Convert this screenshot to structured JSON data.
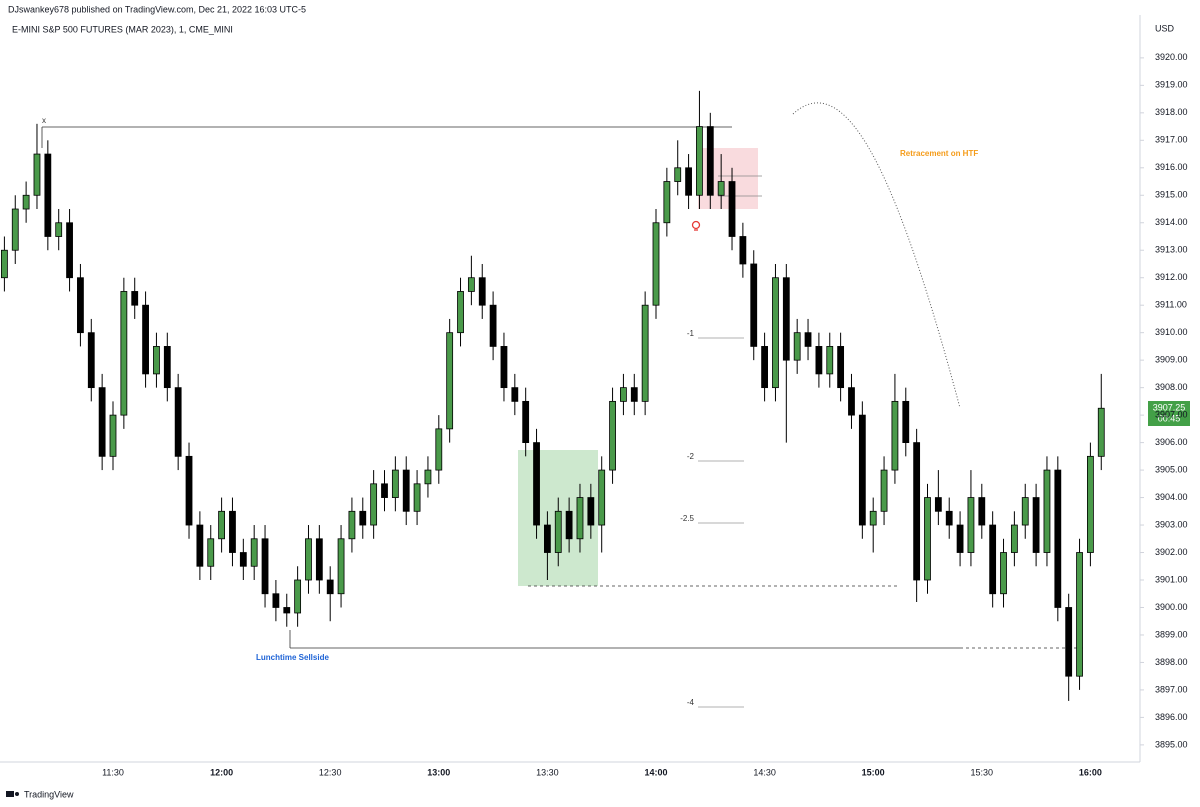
{
  "chart_data": {
    "type": "candlestick",
    "byline": "DJswankey678 published on TradingView.com, Dec 21, 2022 16:03 UTC-5",
    "title": "E-MINI S&P 500 FUTURES (MAR 2023), 1, CME_MINI",
    "currency": "USD",
    "countdown": "00:45",
    "brand": "TradingView",
    "annotations": [
      "x",
      "Retracement on HTF",
      "Lunchtime Sellside",
      "-1",
      "-2",
      "-2.5",
      "-4"
    ],
    "up_color": "#4a9a4a",
    "down_color": "#000000",
    "categories": [
      null,
      null,
      null,
      null,
      null,
      null,
      null,
      null,
      null,
      null,
      "11:30",
      null,
      null,
      null,
      null,
      null,
      null,
      null,
      null,
      null,
      "12:00",
      null,
      null,
      null,
      null,
      null,
      null,
      null,
      null,
      null,
      "12:30",
      null,
      null,
      null,
      null,
      null,
      null,
      null,
      null,
      null,
      "13:00",
      null,
      null,
      null,
      null,
      null,
      null,
      null,
      null,
      null,
      "13:30",
      null,
      null,
      null,
      null,
      null,
      null,
      null,
      null,
      null,
      "14:00",
      null,
      null,
      null,
      null,
      null,
      null,
      null,
      null,
      null,
      "14:30",
      null,
      null,
      null,
      null,
      null,
      null,
      null,
      null,
      null,
      "15:00",
      null,
      null,
      null,
      null,
      null,
      null,
      null,
      null,
      null,
      "15:30",
      null,
      null,
      null,
      null,
      null,
      null,
      null,
      null,
      null,
      "16:00",
      null
    ],
    "open": [
      3912,
      3913,
      3914.5,
      3915,
      3916.5,
      3913.5,
      3914,
      3912,
      3910,
      3908,
      3905.5,
      3907,
      3911.5,
      3911,
      3908.5,
      3909.5,
      3908,
      3905.5,
      3903,
      3901.5,
      3902.5,
      3903.5,
      3902,
      3901.5,
      3902.5,
      3900.5,
      3900,
      3899.8,
      3901,
      3902.5,
      3901,
      3900.5,
      3902.5,
      3903.5,
      3903,
      3904.5,
      3904,
      3905,
      3903.5,
      3904.5,
      3905,
      3906.5,
      3910,
      3911.5,
      3912,
      3911,
      3909.5,
      3908,
      3907.5,
      3906,
      3903,
      3902,
      3903.5,
      3902.5,
      3904,
      3903,
      3905,
      3907.5,
      3908,
      3907.5,
      3911,
      3914,
      3915.5,
      3916,
      3915,
      3917.5,
      3915,
      3915.5,
      3913.5,
      3912.5,
      3909.5,
      3908,
      3912,
      3909,
      3910,
      3909.5,
      3908.5,
      3909.5,
      3908,
      3907,
      3903,
      3903.5,
      3905,
      3907.5,
      3906,
      3901,
      3904,
      3903.5,
      3903,
      3902,
      3904,
      3903,
      3900.5,
      3902,
      3903,
      3904,
      3902,
      3905,
      3900,
      3897.5,
      3902,
      3905.5
    ],
    "high": [
      3913.5,
      3915,
      3915.5,
      3917.6,
      3917,
      3914.5,
      3914.5,
      3912.5,
      3910.5,
      3908.5,
      3907.5,
      3912,
      3912,
      3911.5,
      3910,
      3910,
      3908.5,
      3906,
      3903.5,
      3903,
      3904,
      3904,
      3902.5,
      3903,
      3903,
      3901,
      3900.5,
      3901.5,
      3903,
      3903,
      3901.5,
      3903,
      3904,
      3904,
      3905,
      3905,
      3905.5,
      3905.5,
      3905,
      3905.5,
      3907,
      3910.5,
      3912,
      3912.8,
      3912.5,
      3911.5,
      3910,
      3908.5,
      3908,
      3906.5,
      3903.5,
      3904,
      3904,
      3904.5,
      3904.5,
      3905.5,
      3908,
      3908.5,
      3908.5,
      3911.5,
      3914.5,
      3916,
      3917,
      3916.5,
      3918.8,
      3918,
      3916.5,
      3916,
      3914,
      3913,
      3910,
      3912.5,
      3912.5,
      3910.5,
      3910.5,
      3910,
      3910,
      3910,
      3908.5,
      3907.5,
      3904,
      3905.5,
      3908.5,
      3908,
      3906.5,
      3904.5,
      3905,
      3904,
      3903.5,
      3905,
      3904.5,
      3903.5,
      3902.5,
      3903.5,
      3904.5,
      3904.5,
      3905.5,
      3905.5,
      3900.5,
      3902.5,
      3906,
      3908.5
    ],
    "low": [
      3911.5,
      3912.5,
      3914,
      3914.5,
      3913,
      3913,
      3911.5,
      3909.5,
      3907.5,
      3905,
      3905,
      3906.5,
      3910.5,
      3908,
      3908,
      3907.5,
      3905,
      3902.5,
      3901,
      3901,
      3902,
      3901.5,
      3901,
      3901,
      3900,
      3899.5,
      3899.3,
      3899.3,
      3900.5,
      3900.5,
      3899.5,
      3900,
      3902,
      3902.5,
      3902.5,
      3903.5,
      3903.5,
      3903,
      3903,
      3904,
      3904.5,
      3906,
      3909.5,
      3911,
      3910.5,
      3909,
      3907.5,
      3907,
      3905.5,
      3902.5,
      3901,
      3901.5,
      3902,
      3902,
      3902.5,
      3902,
      3904.5,
      3907,
      3907,
      3907,
      3910.5,
      3913.5,
      3915,
      3914.5,
      3914.5,
      3914.5,
      3914.5,
      3913,
      3912,
      3909,
      3907.5,
      3907.5,
      3906,
      3908.5,
      3909,
      3908,
      3908,
      3907.5,
      3906.5,
      3902.5,
      3902,
      3903,
      3904.5,
      3905.5,
      3900.2,
      3900.5,
      3903,
      3902.5,
      3901.5,
      3901.5,
      3902.5,
      3900,
      3900,
      3901.5,
      3902.5,
      3901.5,
      3901.5,
      3899.5,
      3896.6,
      3897,
      3901.5,
      3905
    ],
    "close": [
      3913,
      3914.5,
      3915,
      3916.5,
      3913.5,
      3914,
      3912,
      3910,
      3908,
      3905.5,
      3907,
      3911.5,
      3911,
      3908.5,
      3909.5,
      3908,
      3905.5,
      3903,
      3901.5,
      3902.5,
      3903.5,
      3902,
      3901.5,
      3902.5,
      3900.5,
      3900,
      3899.8,
      3901,
      3902.5,
      3901,
      3900.5,
      3902.5,
      3903.5,
      3903,
      3904.5,
      3904,
      3905,
      3903.5,
      3904.5,
      3905,
      3906.5,
      3910,
      3911.5,
      3912,
      3911,
      3909.5,
      3908,
      3907.5,
      3906,
      3903,
      3902,
      3903.5,
      3902.5,
      3904,
      3903,
      3905,
      3907.5,
      3908,
      3907.5,
      3911,
      3914,
      3915.5,
      3916,
      3915,
      3917.5,
      3915,
      3915.5,
      3913.5,
      3912.5,
      3909.5,
      3908,
      3912,
      3909,
      3910,
      3909.5,
      3908.5,
      3909.5,
      3908,
      3907,
      3903,
      3903.5,
      3905,
      3907.5,
      3906,
      3901,
      3904,
      3903.5,
      3903,
      3902,
      3904,
      3903,
      3900.5,
      3902,
      3903,
      3904,
      3902,
      3905,
      3900,
      3897.5,
      3902,
      3905.5,
      3907.25
    ],
    "ylim": [
      3894.45,
      3921.56
    ],
    "yticks": [
      {
        "value": 3895,
        "label": "3895.00"
      },
      {
        "value": 3896,
        "label": "3896.00"
      },
      {
        "value": 3897,
        "label": "3897.00"
      },
      {
        "value": 3898,
        "label": "3898.00"
      },
      {
        "value": 3899,
        "label": "3899.00"
      },
      {
        "value": 3900,
        "label": "3900.00"
      },
      {
        "value": 3901,
        "label": "3901.00"
      },
      {
        "value": 3902,
        "label": "3902.00"
      },
      {
        "value": 3903,
        "label": "3903.00"
      },
      {
        "value": 3904,
        "label": "3904.00"
      },
      {
        "value": 3905,
        "label": "3905.00"
      },
      {
        "value": 3906,
        "label": "3906.00"
      },
      {
        "value": 3907,
        "label": "3907.00"
      },
      {
        "value": 3908,
        "label": "3908.00"
      },
      {
        "value": 3909,
        "label": "3909.00"
      },
      {
        "value": 3910,
        "label": "3910.00"
      },
      {
        "value": 3911,
        "label": "3911.00"
      },
      {
        "value": 3912,
        "label": "3912.00"
      },
      {
        "value": 3913,
        "label": "3913.00"
      },
      {
        "value": 3914,
        "label": "3914.00"
      },
      {
        "value": 3915,
        "label": "3915.00"
      },
      {
        "value": 3916,
        "label": "3916.00"
      },
      {
        "value": 3917,
        "label": "3917.00"
      },
      {
        "value": 3918,
        "label": "3918.00"
      },
      {
        "value": 3919,
        "label": "3919.00"
      },
      {
        "value": 3920,
        "label": "3920.00"
      }
    ]
  }
}
